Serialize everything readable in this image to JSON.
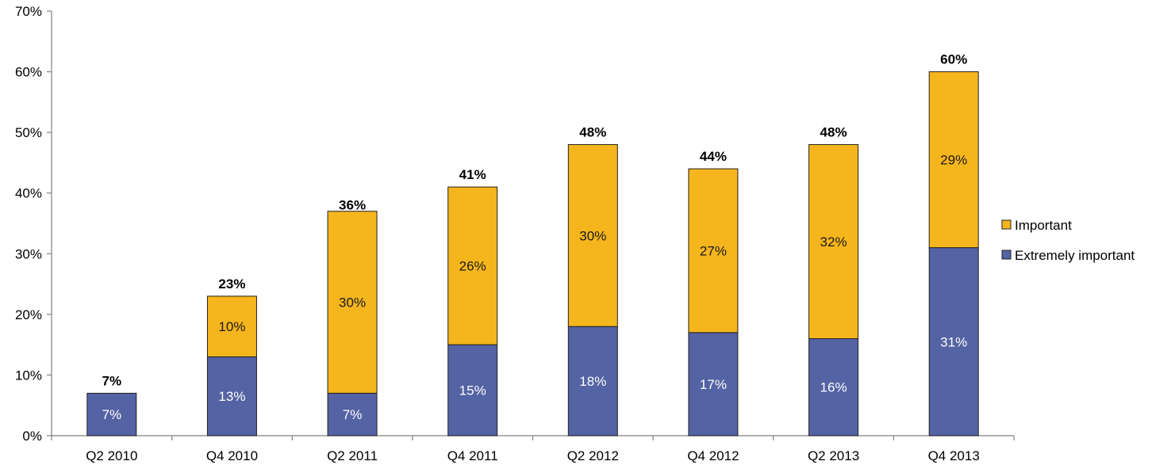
{
  "chart_data": {
    "type": "bar",
    "stacked": true,
    "categories": [
      "Q2 2010",
      "Q4 2010",
      "Q2 2011",
      "Q4 2011",
      "Q2 2012",
      "Q4 2012",
      "Q2 2013",
      "Q4 2013"
    ],
    "series": [
      {
        "name": "Extremely important",
        "color": "#5463a3",
        "values": [
          7,
          13,
          7,
          15,
          18,
          17,
          16,
          31
        ],
        "labels": [
          "7%",
          "13%",
          "7%",
          "15%",
          "18%",
          "17%",
          "16%",
          "31%"
        ]
      },
      {
        "name": "Important",
        "color": "#f5b51d",
        "values": [
          0,
          10,
          30,
          26,
          30,
          27,
          32,
          29
        ],
        "labels": [
          "",
          "10%",
          "30%",
          "26%",
          "30%",
          "27%",
          "32%",
          "29%"
        ]
      }
    ],
    "totals": [
      7,
      23,
      36,
      41,
      48,
      44,
      48,
      60
    ],
    "total_labels": [
      "7%",
      "23%",
      "36%",
      "41%",
      "48%",
      "44%",
      "48%",
      "60%"
    ],
    "ylim": [
      0,
      70
    ],
    "yticks": [
      0,
      10,
      20,
      30,
      40,
      50,
      60,
      70
    ],
    "ytick_labels": [
      "0%",
      "10%",
      "20%",
      "30%",
      "40%",
      "50%",
      "60%",
      "70%"
    ],
    "grid": false,
    "legend": {
      "position": "right",
      "entries": [
        {
          "label": "Important",
          "color": "#f5b51d"
        },
        {
          "label": "Extremely important",
          "color": "#5463a3"
        }
      ]
    }
  }
}
